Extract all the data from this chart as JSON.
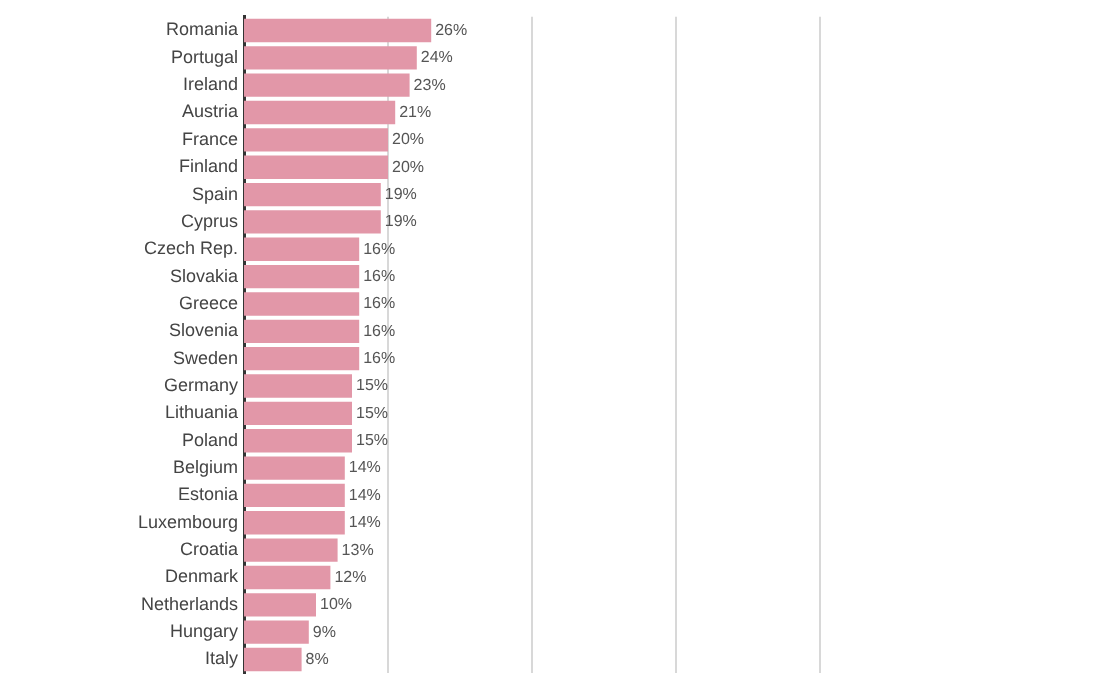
{
  "chart_data": {
    "type": "bar",
    "orientation": "horizontal",
    "categories": [
      "Romania",
      "Portugal",
      "Ireland",
      "Austria",
      "France",
      "Finland",
      "Spain",
      "Cyprus",
      "Czech Rep.",
      "Slovakia",
      "Greece",
      "Slovenia",
      "Sweden",
      "Germany",
      "Lithuania",
      "Poland",
      "Belgium",
      "Estonia",
      "Luxembourg",
      "Croatia",
      "Denmark",
      "Netherlands",
      "Hungary",
      "Italy"
    ],
    "values": [
      26,
      24,
      23,
      21,
      20,
      20,
      19,
      19,
      16,
      16,
      16,
      16,
      16,
      15,
      15,
      15,
      14,
      14,
      14,
      13,
      12,
      10,
      9,
      8
    ],
    "value_labels": [
      "26%",
      "24%",
      "23%",
      "21%",
      "20%",
      "20%",
      "19%",
      "19%",
      "16%",
      "16%",
      "16%",
      "16%",
      "16%",
      "15%",
      "15%",
      "15%",
      "14%",
      "14%",
      "14%",
      "13%",
      "12%",
      "10%",
      "9%",
      "8%"
    ],
    "color": "#e297a8",
    "xlim": [
      0,
      80
    ],
    "xticks": [
      {
        "value": 20,
        "label": null
      },
      {
        "value": 40,
        "label": null
      },
      {
        "value": 60,
        "label": null
      },
      {
        "value": 80,
        "label": null
      }
    ],
    "grid": "x",
    "tick_labels": "y"
  }
}
